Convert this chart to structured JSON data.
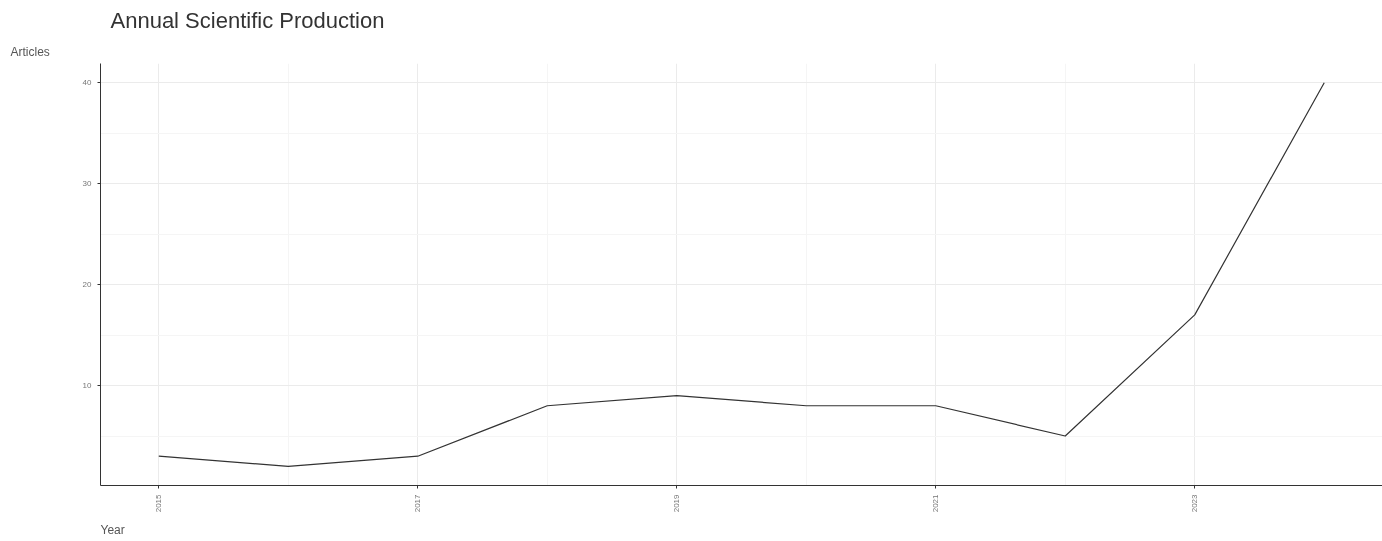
{
  "chart_data": {
    "type": "line",
    "title": "Annual Scientific Production",
    "xlabel": "Year",
    "ylabel": "Articles",
    "x": [
      2015,
      2016,
      2017,
      2018,
      2019,
      2020,
      2021,
      2022,
      2023,
      2024
    ],
    "series": [
      {
        "color": "#333333",
        "values": [
          3,
          2,
          3,
          8,
          9,
          8,
          8,
          5,
          17,
          40
        ]
      }
    ],
    "xlim": [
      2014.55,
      2024.45
    ],
    "ylim": [
      0.1,
      41.9
    ],
    "xticks": [
      2015,
      2017,
      2019,
      2021,
      2023
    ],
    "yticks": [
      10,
      20,
      30,
      40
    ],
    "grid": true,
    "marker": "none",
    "line_style": "solid"
  }
}
